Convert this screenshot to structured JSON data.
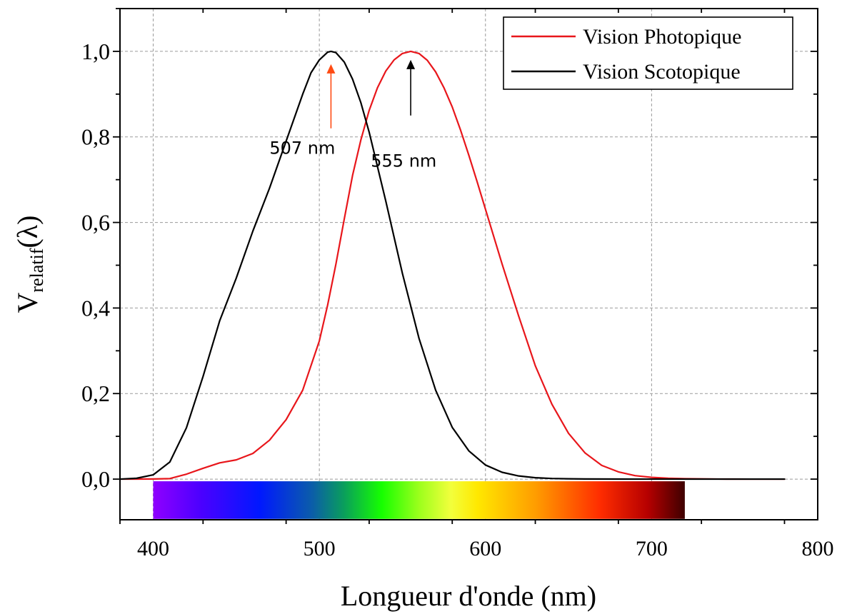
{
  "chart_data": {
    "type": "line",
    "title": "",
    "xlabel": "Longueur d'onde (nm)",
    "ylabel": {
      "main": "V",
      "subscript": "relatif",
      "suffix": "(λ)"
    },
    "xlim": [
      380,
      800
    ],
    "ylim": [
      -0.095,
      1.1
    ],
    "xticks": [
      400,
      500,
      600,
      700,
      800
    ],
    "xtick_labels": [
      "400",
      "500",
      "600",
      "700",
      "800"
    ],
    "yticks": [
      0.0,
      0.2,
      0.4,
      0.6,
      0.8,
      1.0
    ],
    "ytick_labels": [
      "0,0",
      "0,2",
      "0,4",
      "0,6",
      "0,8",
      "1,0"
    ],
    "grid": true,
    "legend_position": "top-right",
    "series": [
      {
        "name": "Vision Photopique",
        "color": "#e8161b",
        "x": [
          380,
          390,
          400,
          410,
          420,
          430,
          440,
          450,
          460,
          470,
          480,
          490,
          500,
          505,
          510,
          515,
          520,
          525,
          530,
          535,
          540,
          545,
          550,
          555,
          560,
          565,
          570,
          575,
          580,
          585,
          590,
          595,
          600,
          610,
          620,
          630,
          640,
          650,
          660,
          670,
          680,
          690,
          700,
          710,
          720,
          730,
          740,
          750,
          760,
          770,
          780
        ],
        "y": [
          0.0,
          0.0001,
          0.0004,
          0.0012,
          0.0116,
          0.0253,
          0.038,
          0.045,
          0.06,
          0.091,
          0.139,
          0.208,
          0.323,
          0.407,
          0.503,
          0.608,
          0.71,
          0.793,
          0.862,
          0.915,
          0.954,
          0.98,
          0.995,
          1.0,
          0.995,
          0.979,
          0.952,
          0.915,
          0.87,
          0.816,
          0.757,
          0.695,
          0.631,
          0.503,
          0.381,
          0.265,
          0.175,
          0.107,
          0.061,
          0.032,
          0.017,
          0.0082,
          0.0041,
          0.0021,
          0.001,
          0.0005,
          0.0002,
          0.0001,
          0.0,
          0.0,
          0.0
        ]
      },
      {
        "name": "Vision Scotopique",
        "color": "#000000",
        "x": [
          380,
          390,
          400,
          410,
          420,
          430,
          440,
          450,
          460,
          470,
          480,
          490,
          495,
          500,
          505,
          507,
          510,
          515,
          520,
          525,
          530,
          540,
          550,
          560,
          570,
          580,
          590,
          600,
          610,
          620,
          630,
          640,
          650,
          660,
          680,
          700,
          720,
          740,
          760,
          780
        ],
        "y": [
          0.0,
          0.002,
          0.01,
          0.04,
          0.12,
          0.24,
          0.37,
          0.47,
          0.58,
          0.68,
          0.79,
          0.9,
          0.95,
          0.98,
          0.998,
          1.0,
          0.997,
          0.975,
          0.935,
          0.88,
          0.811,
          0.65,
          0.481,
          0.329,
          0.208,
          0.121,
          0.066,
          0.033,
          0.016,
          0.0074,
          0.0033,
          0.0015,
          0.0007,
          0.0003,
          0.0001,
          0.0,
          0.0,
          0.0,
          0.0,
          0.0
        ]
      }
    ],
    "annotations": [
      {
        "text": "507 nm",
        "x": 507,
        "arrow_from_y": 0.82,
        "arrow_to_y": 0.97,
        "color": "#ff4b13",
        "label_x": 470,
        "label_y": 0.76
      },
      {
        "text": "555 nm",
        "x": 555,
        "arrow_from_y": 0.85,
        "arrow_to_y": 0.98,
        "color": "#000000",
        "label_x": 531,
        "label_y": 0.73
      }
    ],
    "spectrum_bar": {
      "x_start": 400,
      "x_end": 720,
      "y_top": -0.005,
      "y_bottom": -0.093,
      "stops": [
        {
          "offset": 0.0,
          "color": "#8f00ff"
        },
        {
          "offset": 0.09,
          "color": "#4b00ff"
        },
        {
          "offset": 0.2,
          "color": "#0018ff"
        },
        {
          "offset": 0.3,
          "color": "#0b5ea8"
        },
        {
          "offset": 0.36,
          "color": "#0aa05a"
        },
        {
          "offset": 0.43,
          "color": "#16ff00"
        },
        {
          "offset": 0.5,
          "color": "#9cff1c"
        },
        {
          "offset": 0.56,
          "color": "#f2ff3c"
        },
        {
          "offset": 0.61,
          "color": "#ffe800"
        },
        {
          "offset": 0.72,
          "color": "#ff9c00"
        },
        {
          "offset": 0.84,
          "color": "#ff2d00"
        },
        {
          "offset": 0.93,
          "color": "#b60000"
        },
        {
          "offset": 1.0,
          "color": "#3e0000"
        }
      ]
    }
  }
}
